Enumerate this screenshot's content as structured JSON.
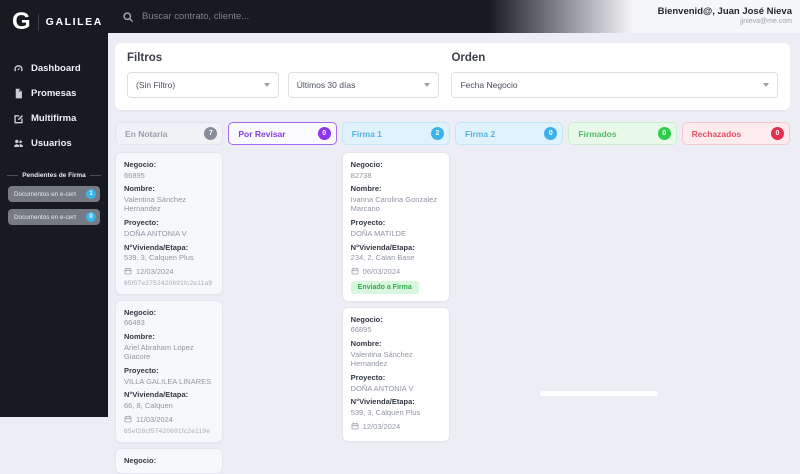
{
  "app": {
    "logo_letter": "G",
    "brand": "GALILEA"
  },
  "topbar": {
    "search_placeholder": "Buscar contrato, cliente...",
    "greeting": "Bienvenid@, Juan José Nieva",
    "email": "jjnieva@me.com"
  },
  "sidebar": {
    "items": [
      {
        "label": "Dashboard"
      },
      {
        "label": "Promesas"
      },
      {
        "label": "Multifirma"
      },
      {
        "label": "Usuarios"
      }
    ],
    "pending": {
      "title": "Pendientes de Firma",
      "items": [
        {
          "label": "Documentos en e-cert",
          "count": "1"
        },
        {
          "label": "Documentos en e-cert",
          "count": "0"
        }
      ]
    }
  },
  "filters": {
    "title": "Filtros",
    "order_title": "Orden",
    "filter_select": "(Sin Filtro)",
    "date_select": "Últimos 30 días",
    "order_select": "Fecha Negocio"
  },
  "colors": {
    "sidebar_bg": "#171a21",
    "page_bg": "#edeef5",
    "ecert_badge": "#3ab5ec",
    "sent_badge_bg": "#d9f7de",
    "sent_badge_text": "#2fae4f"
  },
  "board": {
    "labels": {
      "negocio": "Negocio:",
      "nombre": "Nombre:",
      "proyecto": "Proyecto:",
      "vivienda": "N°Vivienda/Etapa:"
    },
    "columns": [
      {
        "key": "notaria",
        "title": "En Notaría",
        "count": "7",
        "theme": {
          "bg": "#f1f2f6",
          "border": "#e3e4ea",
          "text": "#9aa0ac",
          "badge": "#878e99",
          "card_bg": "#f7f8fb"
        },
        "cards": [
          {
            "negocio": "66895",
            "nombre": "Valentina Sánchez Hernandez",
            "proyecto": "DOÑA ANTONIA V",
            "vivienda": "539, 3, Calquen Plus",
            "fecha": "12/03/2024",
            "hash": "65f07e2752420691fc2e11a9"
          },
          {
            "negocio": "66483",
            "nombre": "Ariel Abraham Lopez Giacore",
            "proyecto": "VILLA GALILEA LINARES",
            "vivienda": "66, 8, Calquen",
            "fecha": "11/03/2024",
            "hash": "65ef28cf57420691fc2e119e"
          },
          {
            "partial": true
          }
        ]
      },
      {
        "key": "por-revisar",
        "title": "Por Revisar",
        "count": "0",
        "theme": {
          "bg": "#fbfaff",
          "border": "#9f6cf0",
          "text": "#8440e8",
          "badge": "#8d35ea",
          "card_bg": "#ffffff"
        },
        "cards": []
      },
      {
        "key": "firma-1",
        "title": "Firma 1",
        "count": "2",
        "theme": {
          "bg": "#e0f2fb",
          "border": "#c4e6f6",
          "text": "#56b4e4",
          "badge": "#3db2ea",
          "card_bg": "#ffffff"
        },
        "cards": [
          {
            "negocio": "82738",
            "nombre": "Ivanna Carolina Gonzalez Marcano",
            "proyecto": "DOÑA MATILDE",
            "vivienda": "234, 2, Calan Base",
            "fecha": "06/03/2024",
            "badge": "Enviado a Firma"
          },
          {
            "negocio": "66895",
            "nombre": "Valentina Sánchez Hernandez",
            "proyecto": "DOÑA ANTONIA V",
            "vivienda": "539, 3, Calquen Plus",
            "fecha": "12/03/2024"
          }
        ]
      },
      {
        "key": "firma-2",
        "title": "Firma 2",
        "count": "0",
        "theme": {
          "bg": "#e0f2fb",
          "border": "#c4e6f6",
          "text": "#56b4e4",
          "badge": "#3db2ea",
          "card_bg": "#ffffff"
        },
        "cards": []
      },
      {
        "key": "firmados",
        "title": "Firmados",
        "count": "0",
        "theme": {
          "bg": "#e8f9ea",
          "border": "#cceed0",
          "text": "#57b968",
          "badge": "#2ecc4a",
          "card_bg": "#ffffff"
        },
        "cards": []
      },
      {
        "key": "rechazados",
        "title": "Rechazados",
        "count": "0",
        "theme": {
          "bg": "#fdebee",
          "border": "#f5c7cf",
          "text": "#e25268",
          "badge": "#e82e4f",
          "card_bg": "#ffffff"
        },
        "cards": []
      }
    ]
  }
}
